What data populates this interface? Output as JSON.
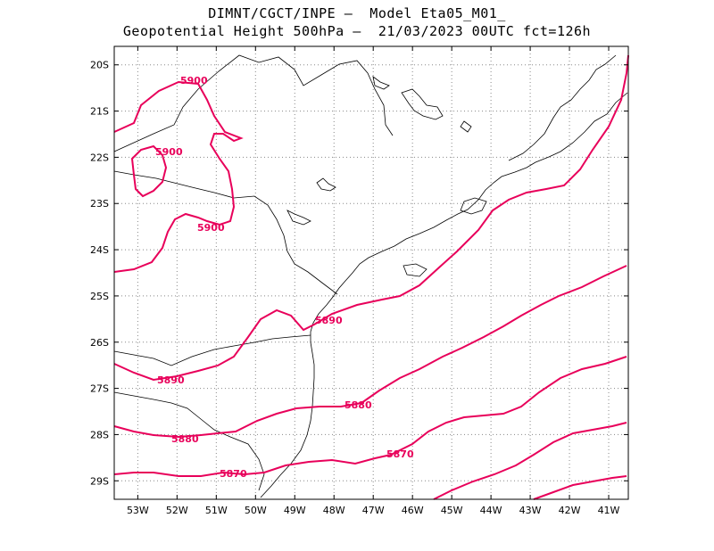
{
  "title": {
    "line1": "DIMNT/CGCT/INPE –  Model Eta05_M01_",
    "line2": "Geopotential Height 500hPa –  21/03/2023 00UTC fct=126h"
  },
  "colors": {
    "contour": "#e8005a",
    "coast": "#000000",
    "grid": "#888888"
  },
  "axes": {
    "lon_range": [
      -53.6,
      -40.5
    ],
    "lat_range": [
      -29.4,
      -19.6
    ],
    "x_ticks": [
      "53W",
      "52W",
      "51W",
      "50W",
      "49W",
      "48W",
      "47W",
      "46W",
      "45W",
      "44W",
      "43W",
      "42W",
      "41W"
    ],
    "y_ticks": [
      "20S",
      "21S",
      "22S",
      "23S",
      "24S",
      "25S",
      "26S",
      "27S",
      "28S",
      "29S"
    ]
  },
  "contour_labels": [
    "5900",
    "5900",
    "5900",
    "5890",
    "5890",
    "5880",
    "5880",
    "5870",
    "5870"
  ]
}
